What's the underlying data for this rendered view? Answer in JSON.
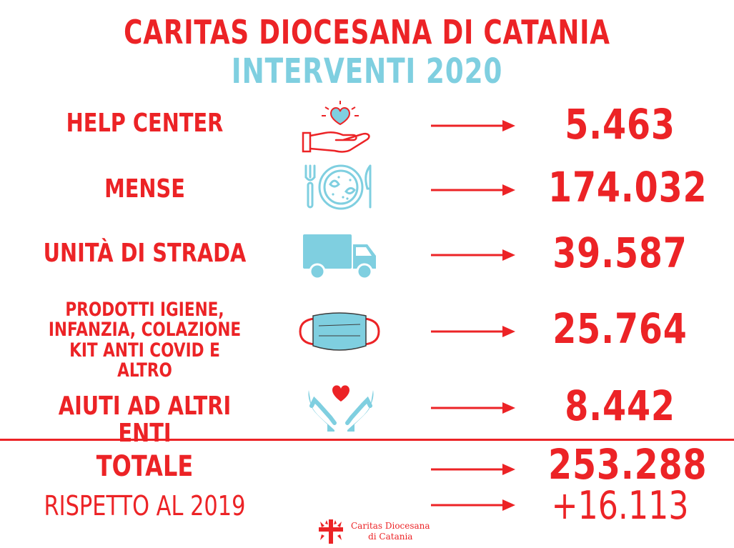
{
  "header": {
    "title": "CARITAS DIOCESANA DI CATANIA",
    "subtitle": "INTERVENTI 2020"
  },
  "colors": {
    "accent": "#ec2326",
    "secondary": "#7fcfe0"
  },
  "rows": [
    {
      "label": "HELP CENTER",
      "icon": "heart-in-hand-icon",
      "value": "5.463"
    },
    {
      "label": "MENSE",
      "icon": "plate-fork-knife-icon",
      "value": "174.032"
    },
    {
      "label": "UNITÀ DI STRADA",
      "icon": "truck-icon",
      "value": "39.587"
    },
    {
      "label_lines": [
        "PRODOTTI IGIENE,",
        "INFANZIA, COLAZIONE",
        "KIT ANTI COVID E ALTRO"
      ],
      "icon": "face-mask-icon",
      "value": "25.764"
    },
    {
      "label": "AIUTI AD ALTRI ENTI",
      "icon": "hands-holding-heart-icon",
      "value": "8.442"
    }
  ],
  "total": {
    "label": "TOTALE",
    "value": "253.288"
  },
  "comparison": {
    "label": "RISPETTO AL 2019",
    "value": "+16.113"
  },
  "logo": {
    "line1": "Caritas Diocesana",
    "line2": "di Catania"
  }
}
